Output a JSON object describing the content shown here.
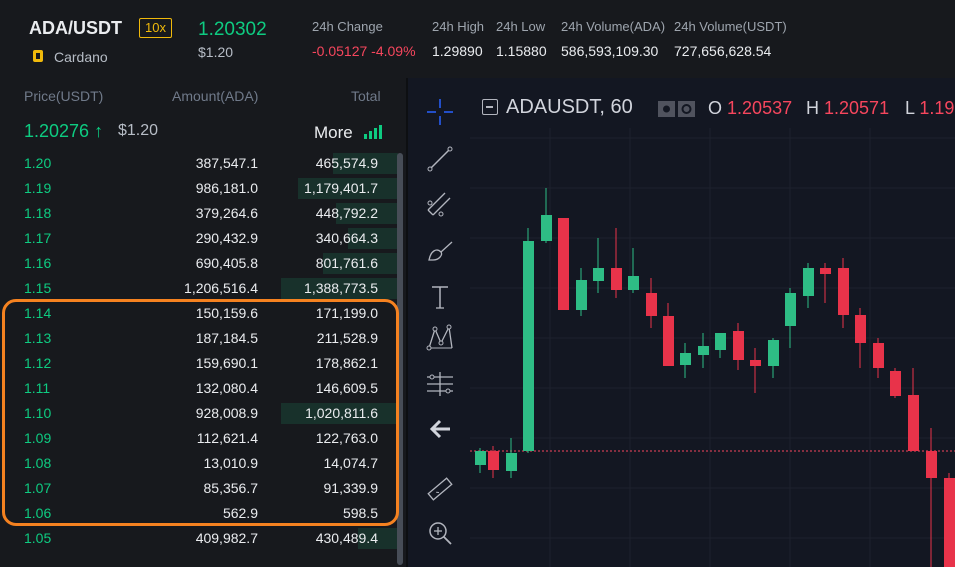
{
  "header": {
    "pair": "ADA/USDT",
    "leverage": "10x",
    "coin": "Cardano",
    "last_price": "1.20302",
    "last_price_usd": "$1.20",
    "stats": [
      {
        "label": "24h Change",
        "value": "-0.05127 -4.09%",
        "color": "red"
      },
      {
        "label": "24h High",
        "value": "1.29890"
      },
      {
        "label": "24h Low",
        "value": "1.15880"
      },
      {
        "label": "24h Volume(ADA)",
        "value": "586,593,109.30"
      },
      {
        "label": "24h Volume(USDT)",
        "value": "727,656,628.54"
      }
    ]
  },
  "book": {
    "col_price": "Price(USDT)",
    "col_amount": "Amount(ADA)",
    "col_total": "Total",
    "mid_price": "1.20276",
    "mid_arrow": "↑",
    "mid_usd": "$1.20",
    "more_label": "More",
    "rows": [
      {
        "price": "1.20",
        "amount": "387,547.1",
        "total": "465,574.9",
        "depth": 0.26
      },
      {
        "price": "1.19",
        "amount": "986,181.0",
        "total": "1,179,401.7",
        "depth": 0.4
      },
      {
        "price": "1.18",
        "amount": "379,264.6",
        "total": "448,792.2",
        "depth": 0.25
      },
      {
        "price": "1.17",
        "amount": "290,432.9",
        "total": "340,664.3",
        "depth": 0.2
      },
      {
        "price": "1.16",
        "amount": "690,405.8",
        "total": "801,761.6",
        "depth": 0.3
      },
      {
        "price": "1.15",
        "amount": "1,206,516.4",
        "total": "1,388,773.5",
        "depth": 0.47
      },
      {
        "price": "1.14",
        "amount": "150,159.6",
        "total": "171,199.0",
        "depth": 0.0
      },
      {
        "price": "1.13",
        "amount": "187,184.5",
        "total": "211,528.9",
        "depth": 0.0
      },
      {
        "price": "1.12",
        "amount": "159,690.1",
        "total": "178,862.1",
        "depth": 0.0
      },
      {
        "price": "1.11",
        "amount": "132,080.4",
        "total": "146,609.5",
        "depth": 0.0
      },
      {
        "price": "1.10",
        "amount": "928,008.9",
        "total": "1,020,811.6",
        "depth": 0.47
      },
      {
        "price": "1.09",
        "amount": "112,621.4",
        "total": "122,763.0",
        "depth": 0.0
      },
      {
        "price": "1.08",
        "amount": "13,010.9",
        "total": "14,074.7",
        "depth": 0.0
      },
      {
        "price": "1.07",
        "amount": "85,356.7",
        "total": "91,339.9",
        "depth": 0.0
      },
      {
        "price": "1.06",
        "amount": "562.9",
        "total": "598.5",
        "depth": 0.0
      },
      {
        "price": "1.05",
        "amount": "409,982.7",
        "total": "430,489.4",
        "depth": 0.16
      }
    ]
  },
  "chart": {
    "symbol": "ADAUSDT, 60",
    "o_label": "O",
    "o_value": "1.20537",
    "h_label": "H",
    "h_value": "1.20571",
    "l_label": "L",
    "l_value": "1.19",
    "tools": [
      "crosshair-icon",
      "trendline-icon",
      "fib-icon",
      "brush-icon",
      "text-icon",
      "pattern-icon",
      "measure-icon",
      "back-arrow-icon",
      "ruler-icon",
      "zoom-icon"
    ]
  },
  "colors": {
    "up": "#0ecb81",
    "down": "#f6465d",
    "accent": "#f0b90b",
    "highlight": "#f58220"
  }
}
